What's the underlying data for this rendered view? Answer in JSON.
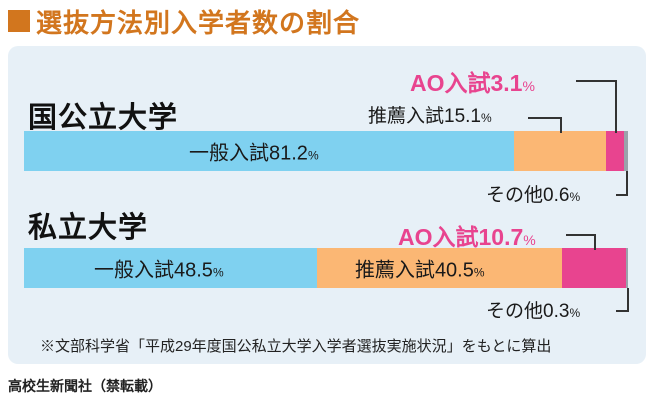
{
  "title": "選抜方法別入学者数の割合",
  "colors": {
    "accent": "#d2761e",
    "general": "#7fd1f0",
    "recommendation": "#fbb774",
    "ao": "#e8448f",
    "other": "#9aa3ab",
    "panel": "#e7f0f7"
  },
  "chart_data": {
    "type": "bar",
    "orientation": "horizontal-stacked",
    "categories": [
      "国公立大学",
      "私立大学"
    ],
    "series": [
      {
        "name": "一般入試",
        "values": [
          81.2,
          48.5
        ]
      },
      {
        "name": "推薦入試",
        "values": [
          15.1,
          40.5
        ]
      },
      {
        "name": "AO入試",
        "values": [
          3.1,
          10.7
        ]
      },
      {
        "name": "その他",
        "values": [
          0.6,
          0.3
        ]
      }
    ],
    "unit": "%"
  },
  "note": "※文部科学省「平成29年度国公私立大学入学者選抜実施状況」をもとに算出",
  "credit": "高校生新聞社（禁転載）"
}
